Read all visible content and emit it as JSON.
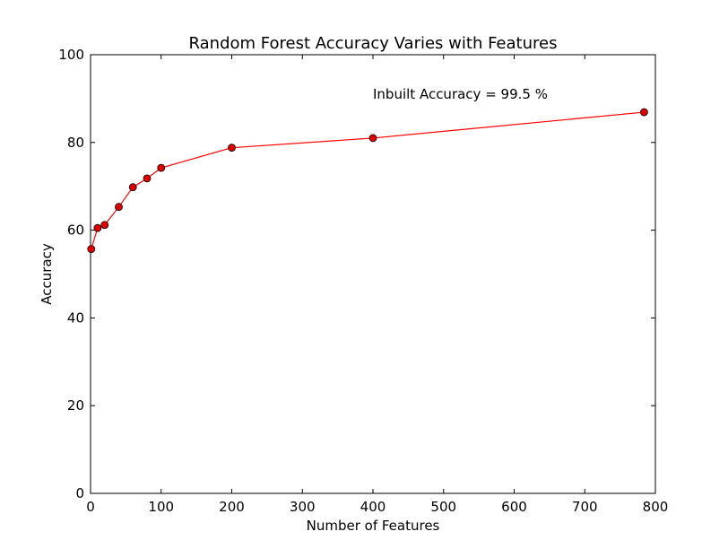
{
  "chart_data": {
    "type": "line",
    "title": "Random Forest Accuracy Varies with Features",
    "xlabel": "Number of Features",
    "ylabel": "Accuracy",
    "xlim": [
      0,
      800
    ],
    "ylim": [
      0,
      100
    ],
    "xticks": [
      0,
      100,
      200,
      300,
      400,
      500,
      600,
      700,
      800
    ],
    "yticks": [
      0,
      20,
      40,
      60,
      80,
      100
    ],
    "grid": false,
    "annotation": "Inbuilt Accuracy = 99.5 %",
    "annotation_at": [
      400,
      90
    ],
    "series": [
      {
        "color": "#ff0000",
        "marker_fill": "#e00000",
        "x": [
          1,
          10,
          20,
          40,
          60,
          80,
          100,
          200,
          400,
          784
        ],
        "y": [
          55.7,
          60.5,
          61.2,
          65.3,
          69.8,
          71.8,
          74.2,
          78.8,
          81.0,
          86.9
        ]
      }
    ]
  }
}
